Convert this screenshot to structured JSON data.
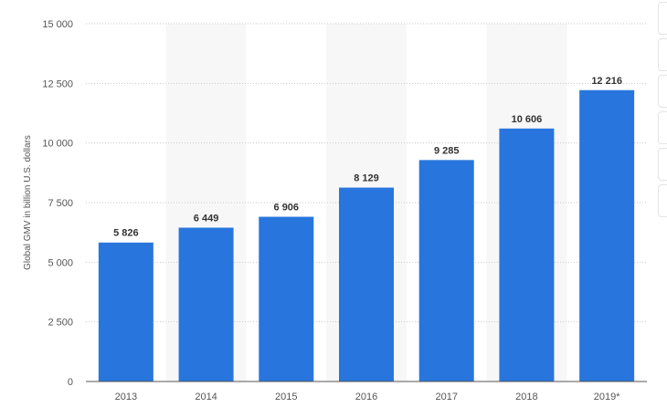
{
  "chart_data": {
    "type": "bar",
    "categories": [
      "2013",
      "2014",
      "2015",
      "2016",
      "2017",
      "2018",
      "2019*"
    ],
    "values": [
      5826,
      6449,
      6906,
      8129,
      9285,
      10606,
      12216
    ],
    "value_labels": [
      "5 826",
      "6 449",
      "6 906",
      "8 129",
      "9 285",
      "10 606",
      "12 216"
    ],
    "ylabel": "Global GMV in billion U.S. dollars",
    "ylim": [
      0,
      15000
    ],
    "yticks": [
      0,
      2500,
      5000,
      7500,
      10000,
      12500,
      15000
    ],
    "ytick_labels": [
      "0",
      "2 500",
      "5 000",
      "7 500",
      "10 000",
      "12 500",
      "15 000"
    ],
    "grid": true,
    "bar_color": "#2876dd",
    "band_color": "#f7f7f7"
  }
}
